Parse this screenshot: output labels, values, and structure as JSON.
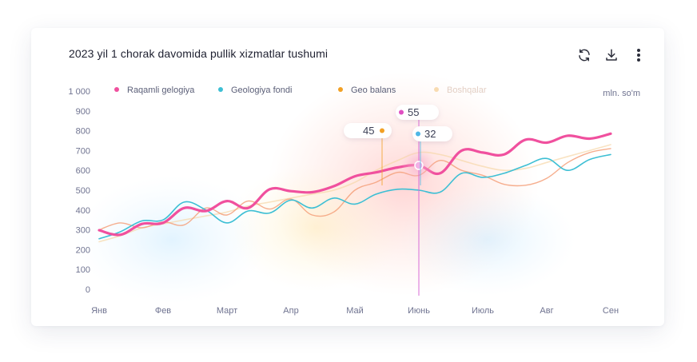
{
  "header": {
    "title": "2023 yil 1 chorak davomida pullik xizmatlar tushumi",
    "unit": "mln. so'm",
    "icons": [
      "refresh-icon",
      "download-icon",
      "more-vertical-icon"
    ]
  },
  "chart_data": {
    "type": "line",
    "title": "2023 yil 1 chorak davomida pullik xizmatlar tushumi",
    "ylabel": "mln. so'm",
    "categories": [
      "Янв",
      "Фев",
      "Март",
      "Апр",
      "Май",
      "Июнь",
      "Июль",
      "Авг",
      "Сен"
    ],
    "ylim": [
      0,
      1000
    ],
    "yticks": [
      {
        "value": 0,
        "label": "0"
      },
      {
        "value": 100,
        "label": "100"
      },
      {
        "value": 200,
        "label": "200"
      },
      {
        "value": 300,
        "label": "300"
      },
      {
        "value": 400,
        "label": "400"
      },
      {
        "value": 500,
        "label": "500"
      },
      {
        "value": 600,
        "label": "600"
      },
      {
        "value": 700,
        "label": "700"
      },
      {
        "value": 800,
        "label": "800"
      },
      {
        "value": 900,
        "label": "900"
      },
      {
        "value": 1000,
        "label": "1 000"
      }
    ],
    "legend_position": "top-left",
    "grid": false,
    "x": [
      0,
      0.33,
      0.67,
      1.0,
      1.33,
      1.67,
      2.0,
      2.33,
      2.67,
      3.0,
      3.33,
      3.67,
      4.0,
      4.33,
      4.67,
      5.0,
      5.33,
      5.67,
      6.0,
      6.33,
      6.67,
      7.0,
      7.33,
      7.67,
      8.0
    ],
    "series": [
      {
        "name": "Raqamli gelogiya",
        "color": "#f0509e",
        "values": [
          298,
          275,
          330,
          335,
          410,
          395,
          445,
          410,
          505,
          495,
          490,
          520,
          570,
          590,
          615,
          625,
          585,
          700,
          690,
          680,
          755,
          740,
          775,
          760,
          785
        ]
      },
      {
        "name": "Geologiya fondi",
        "color": "#3dbfd4",
        "values": [
          255,
          290,
          345,
          350,
          440,
          400,
          335,
          395,
          385,
          450,
          410,
          460,
          430,
          480,
          505,
          500,
          490,
          585,
          565,
          585,
          625,
          660,
          600,
          655,
          680
        ]
      },
      {
        "name": "Geo balans",
        "color": "#f4a07a",
        "values": [
          300,
          335,
          310,
          340,
          325,
          410,
          375,
          445,
          405,
          455,
          375,
          390,
          500,
          540,
          590,
          575,
          650,
          600,
          575,
          530,
          525,
          560,
          640,
          690,
          710
        ]
      },
      {
        "name": "Boshqalar",
        "color": "#f7d7a8",
        "values": [
          240,
          270,
          310,
          330,
          350,
          370,
          390,
          420,
          440,
          460,
          480,
          500,
          540,
          600,
          650,
          690,
          680,
          650,
          620,
          600,
          610,
          640,
          670,
          700,
          730
        ]
      }
    ],
    "callouts": [
      {
        "label": "55",
        "series": "Raqamli gelogiya",
        "color": "#e04fc2"
      },
      {
        "label": "45",
        "series": "Geo balans",
        "color": "#f2a024"
      },
      {
        "label": "32",
        "series": "Geologiya fondi",
        "color": "#4fb7e6"
      }
    ],
    "highlight_x": 5.0
  }
}
